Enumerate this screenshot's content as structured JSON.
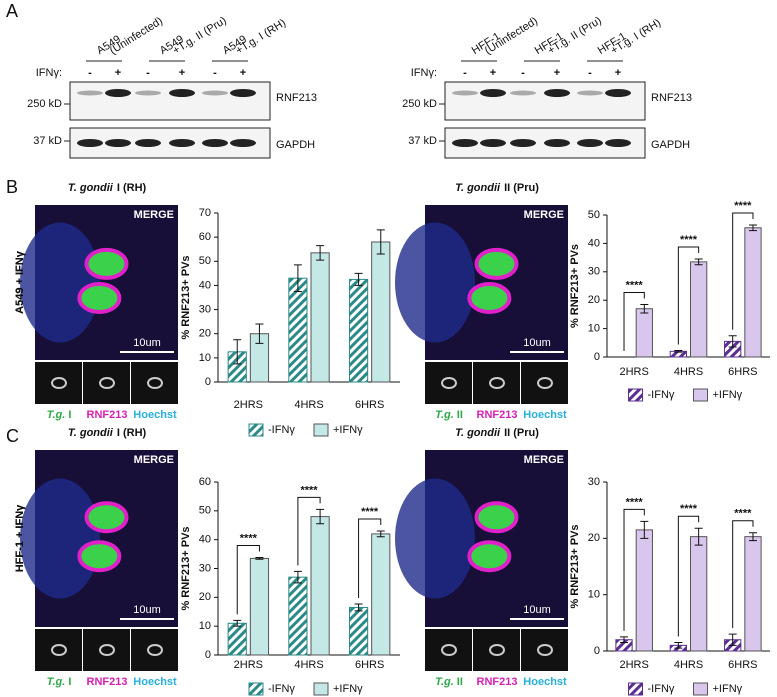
{
  "panel_labels": [
    "A",
    "B",
    "C"
  ],
  "blots": [
    {
      "lanes": [
        [
          "A549",
          "(Uninfected)"
        ],
        [
          "A549",
          "+T.g. II (Pru)"
        ],
        [
          "A549",
          "+T.g. I (RH)"
        ]
      ],
      "ifn_label": "IFNγ:",
      "signs": [
        "-",
        "+",
        "-",
        "+",
        "-",
        "+"
      ],
      "markers": [
        "250 kD",
        "37 kD"
      ],
      "bands": [
        "RNF213",
        "GAPDH"
      ]
    },
    {
      "lanes": [
        [
          "HFF-1",
          "(Uninfected)"
        ],
        [
          "HFF-1",
          "+T.g. II (Pru)"
        ],
        [
          "HFF-1",
          "+T.g. I (RH)"
        ]
      ],
      "ifn_label": "IFNγ:",
      "signs": [
        "-",
        "+",
        "-",
        "+",
        "-",
        "+"
      ],
      "markers": [
        "250 kD",
        "37 kD"
      ],
      "bands": [
        "RNF213",
        "GAPDH"
      ]
    }
  ],
  "micrographs": [
    {
      "species": "T. gondii",
      "strain": "I (RH)",
      "condition": "A549 + IFNγ",
      "merge": "MERGE",
      "scale": "10um",
      "tg": "T.g.",
      "tg_strain": "I",
      "rnf": "RNF213",
      "hoechst": "Hoechst"
    },
    {
      "species": "T. gondii",
      "strain": "II (Pru)",
      "condition": "A549 + IFNγ",
      "merge": "MERGE",
      "scale": "10um",
      "tg": "T.g.",
      "tg_strain": "II",
      "rnf": "RNF213",
      "hoechst": "Hoechst"
    },
    {
      "species": "T. gondii",
      "strain": "I (RH)",
      "condition": "HFF-1 + IFNγ",
      "merge": "MERGE",
      "scale": "10um",
      "tg": "T.g.",
      "tg_strain": "I",
      "rnf": "RNF213",
      "hoechst": "Hoechst"
    },
    {
      "species": "T. gondii",
      "strain": "II (Pru)",
      "condition": "HFF-1 + IFNγ",
      "merge": "MERGE",
      "scale": "10um",
      "tg": "T.g.",
      "tg_strain": "II",
      "rnf": "RNF213",
      "hoechst": "Hoechst"
    }
  ],
  "chart_data": [
    {
      "type": "bar",
      "ylabel": "% RNF213+ PVs",
      "categories": [
        "2HRS",
        "4HRS",
        "6HRS"
      ],
      "series": [
        {
          "name": "-IFNγ",
          "color": "#2b8a87",
          "hatch": true,
          "values": [
            12.5,
            43,
            42.5
          ],
          "errors": [
            5,
            5.5,
            2.5
          ]
        },
        {
          "name": "+IFNγ",
          "color": "#c3e8e6",
          "hatch": false,
          "values": [
            20,
            53.5,
            58
          ],
          "errors": [
            4,
            3,
            5
          ]
        }
      ],
      "ylim": [
        0,
        70
      ],
      "yticks": [
        0,
        10,
        20,
        30,
        40,
        50,
        60,
        70
      ],
      "annotations": []
    },
    {
      "type": "bar",
      "ylabel": "% RNF213+ PVs",
      "categories": [
        "2HRS",
        "4HRS",
        "6HRS"
      ],
      "series": [
        {
          "name": "-IFNγ",
          "color": "#5b2f91",
          "hatch": true,
          "values": [
            0,
            2,
            5.5
          ],
          "errors": [
            0,
            0.3,
            2
          ]
        },
        {
          "name": "+IFNγ",
          "color": "#d8c6ec",
          "hatch": false,
          "values": [
            17,
            33.5,
            45.5
          ],
          "errors": [
            1.5,
            1,
            1
          ]
        }
      ],
      "ylim": [
        0,
        50
      ],
      "yticks": [
        0,
        10,
        20,
        30,
        40,
        50
      ],
      "annotations": [
        "****",
        "****",
        "****"
      ]
    },
    {
      "type": "bar",
      "ylabel": "% RNF213+ PVs",
      "categories": [
        "2HRS",
        "4HRS",
        "6HRS"
      ],
      "series": [
        {
          "name": "-IFNγ",
          "color": "#2b8a87",
          "hatch": true,
          "values": [
            11,
            27,
            16.5
          ],
          "errors": [
            1,
            2,
            1.2
          ]
        },
        {
          "name": "+IFNγ",
          "color": "#c3e8e6",
          "hatch": false,
          "values": [
            33.5,
            48,
            42
          ],
          "errors": [
            0.3,
            2.5,
            1
          ]
        }
      ],
      "ylim": [
        0,
        60
      ],
      "yticks": [
        0,
        10,
        20,
        30,
        40,
        50,
        60
      ],
      "annotations": [
        "****",
        "****",
        "****"
      ]
    },
    {
      "type": "bar",
      "ylabel": "% RNF213+ PVs",
      "categories": [
        "2HRS",
        "4HRS",
        "6HRS"
      ],
      "series": [
        {
          "name": "-IFNγ",
          "color": "#5b2f91",
          "hatch": true,
          "values": [
            2,
            1,
            2
          ],
          "errors": [
            0.5,
            0.5,
            1
          ]
        },
        {
          "name": "+IFNγ",
          "color": "#d8c6ec",
          "hatch": false,
          "values": [
            21.5,
            20.3,
            20.3
          ],
          "errors": [
            1.5,
            1.5,
            0.7
          ]
        }
      ],
      "ylim": [
        0,
        30
      ],
      "yticks": [
        0,
        10,
        20,
        30
      ],
      "annotations": [
        "****",
        "****",
        "****"
      ]
    }
  ]
}
